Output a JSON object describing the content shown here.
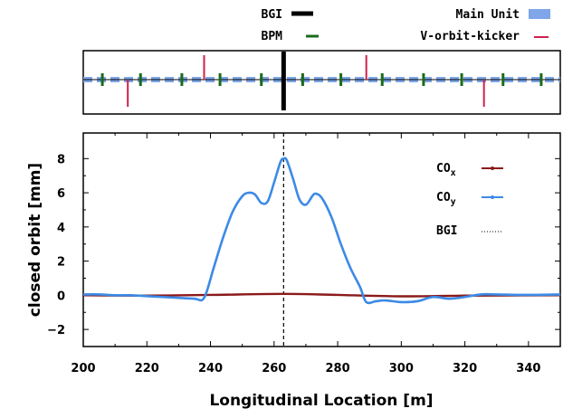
{
  "chart_data": [
    {
      "type": "line",
      "panel": "lattice",
      "title": "",
      "xlim": [
        200,
        350
      ],
      "legend_placement": "top",
      "legend": [
        {
          "label": "BGI",
          "color": "#000000",
          "style": "thick vertical bar"
        },
        {
          "label": "BPM",
          "color": "#1a6b1a",
          "style": "short vertical bar"
        },
        {
          "label": "Main Unit",
          "color": "#7ea6e8",
          "style": "dashed band"
        },
        {
          "label": "V-orbit-kicker",
          "color": "#d0204c",
          "style": "vertical bar above/below"
        }
      ],
      "elements": {
        "bgi": [
          263
        ],
        "bpm": [
          206,
          218,
          231,
          243,
          256,
          269,
          281,
          294,
          307,
          319,
          332,
          344
        ],
        "kicker_up": [
          238,
          289
        ],
        "kicker_down": [
          214,
          326
        ]
      }
    },
    {
      "type": "line",
      "panel": "orbit",
      "title": "",
      "xlabel": "Longitudinal Location [m]",
      "ylabel": "closed orbit [mm]",
      "xlim": [
        200,
        350
      ],
      "ylim": [
        -3,
        9.5
      ],
      "xticks": [
        "200",
        "220",
        "240",
        "260",
        "280",
        "300",
        "320",
        "340"
      ],
      "yticks": [
        "−2",
        "0",
        "2",
        "4",
        "6",
        "8"
      ],
      "grid": false,
      "legend_placement": "top-right",
      "legend": [
        {
          "label": "CO",
          "sub": "x",
          "color": "#8b1a1a"
        },
        {
          "label": "CO",
          "sub": "y",
          "color": "#3c8ae6"
        },
        {
          "label": "BGI",
          "color": "#000000",
          "style": "dotted"
        }
      ],
      "series": [
        {
          "name": "COx",
          "color": "#8b1a1a",
          "x": [
            200,
            220,
            240,
            263,
            280,
            300,
            320,
            350
          ],
          "y": [
            0.0,
            -0.02,
            0.02,
            0.08,
            0.02,
            -0.06,
            -0.02,
            0.0
          ]
        },
        {
          "name": "COy",
          "color": "#3c8ae6",
          "x": [
            200,
            205,
            210,
            215,
            220,
            225,
            230,
            235,
            238,
            241,
            244,
            247,
            250,
            252,
            254,
            256,
            258,
            260,
            262,
            263,
            264,
            266,
            268,
            270,
            272,
            273,
            275,
            278,
            281,
            284,
            287,
            289,
            292,
            295,
            300,
            305,
            310,
            315,
            320,
            325,
            330,
            340,
            350
          ],
          "y": [
            0.05,
            0.05,
            0.0,
            0.0,
            -0.05,
            -0.1,
            -0.15,
            -0.2,
            -0.15,
            1.6,
            3.4,
            4.9,
            5.8,
            6.0,
            5.9,
            5.4,
            5.5,
            6.6,
            7.8,
            8.0,
            7.9,
            6.8,
            5.6,
            5.3,
            5.8,
            5.95,
            5.7,
            4.6,
            3.0,
            1.6,
            0.5,
            -0.4,
            -0.35,
            -0.3,
            -0.4,
            -0.35,
            -0.1,
            -0.2,
            -0.1,
            0.05,
            0.05,
            0.02,
            0.05
          ]
        }
      ],
      "bgi_marker_x": 263
    }
  ]
}
